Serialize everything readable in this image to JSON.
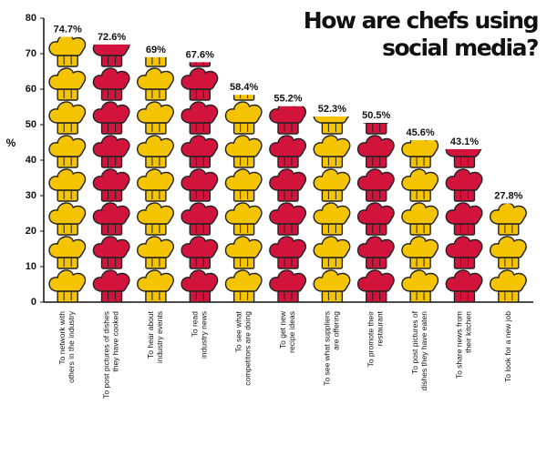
{
  "chart_data": {
    "type": "pictograph",
    "title": "How are chefs using\nsocial media?",
    "y_label": "%",
    "categories": [
      "To network with\nothers in the industry",
      "To post pictures of dishes\nthey have cooked",
      "To hear about\nindustry events",
      "To read\nindustry news",
      "To see what\ncompetitors are doing",
      "To get new\nrecipe ideas",
      "To see what suppliers\nare offering",
      "To promote their\nrestaurant",
      "To post pictures of\ndishes they have eaten",
      "To share news from\ntheir kitchen",
      "To look for a new job"
    ],
    "values": [
      74.7,
      72.6,
      69,
      67.6,
      58.4,
      55.2,
      52.3,
      50.5,
      45.6,
      43.1,
      27.8
    ],
    "value_labels": [
      "74.7%",
      "72.6%",
      "69%",
      "67.6%",
      "58.4%",
      "55.2%",
      "52.3%",
      "50.5%",
      "45.6%",
      "43.1%",
      "27.8%"
    ],
    "colors": [
      "#f5c400",
      "#d2143c",
      "#f5c400",
      "#d2143c",
      "#f5c400",
      "#d2143c",
      "#f5c400",
      "#d2143c",
      "#f5c400",
      "#d2143c",
      "#f5c400"
    ],
    "ylim": [
      0,
      80
    ],
    "yticks": [
      0,
      10,
      20,
      30,
      40,
      50,
      60,
      70,
      80
    ]
  }
}
